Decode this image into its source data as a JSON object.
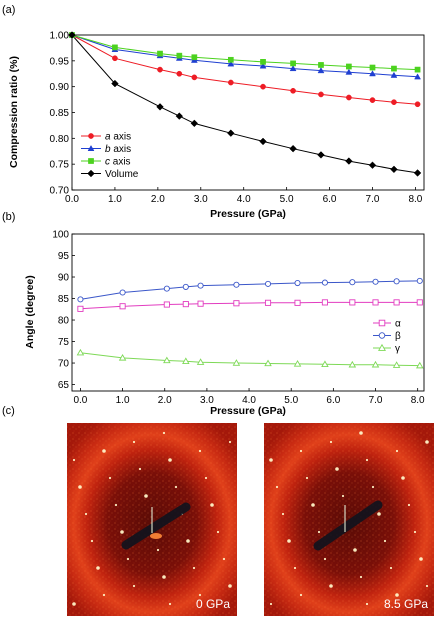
{
  "panels": {
    "a": "(a)",
    "b": "(b)",
    "c": "(c)"
  },
  "chart_data": [
    {
      "type": "line",
      "panel": "(a)",
      "xlabel": "Pressure (GPa)",
      "ylabel": "Compression ratio (%)",
      "xlim": [
        0,
        8.2
      ],
      "ylim": [
        0.7,
        1.0
      ],
      "xticks": [
        "0.0",
        "1.0",
        "2.0",
        "3.0",
        "4.0",
        "5.0",
        "6.0",
        "7.0",
        "8.0"
      ],
      "yticks": [
        "0.70",
        "0.75",
        "0.80",
        "0.85",
        "0.90",
        "0.95",
        "1.00"
      ],
      "legend_position": "bottom-left",
      "series": [
        {
          "name": "a axis",
          "name_italic": "a",
          "name_rest": " axis",
          "marker": "circle",
          "color": "#ee1c25",
          "x": [
            0,
            1,
            2.05,
            2.5,
            2.85,
            3.7,
            4.45,
            5.15,
            5.8,
            6.45,
            7.0,
            7.5,
            8.05
          ],
          "y": [
            1.0,
            0.955,
            0.933,
            0.925,
            0.918,
            0.908,
            0.9,
            0.892,
            0.885,
            0.879,
            0.874,
            0.87,
            0.866
          ]
        },
        {
          "name": "b axis",
          "name_italic": "b",
          "name_rest": " axis",
          "marker": "triangle",
          "color": "#1f3fd1",
          "x": [
            0,
            1,
            2.05,
            2.5,
            2.85,
            3.7,
            4.45,
            5.15,
            5.8,
            6.45,
            7.0,
            7.5,
            8.05
          ],
          "y": [
            1.0,
            0.972,
            0.96,
            0.955,
            0.951,
            0.944,
            0.94,
            0.935,
            0.931,
            0.928,
            0.925,
            0.922,
            0.919
          ]
        },
        {
          "name": "c axis",
          "name_italic": "c",
          "name_rest": " axis",
          "marker": "square",
          "color": "#4cd21f",
          "x": [
            0,
            1,
            2.05,
            2.5,
            2.85,
            3.7,
            4.45,
            5.15,
            5.8,
            6.45,
            7.0,
            7.5,
            8.05
          ],
          "y": [
            1.0,
            0.976,
            0.964,
            0.96,
            0.957,
            0.952,
            0.948,
            0.945,
            0.942,
            0.939,
            0.937,
            0.935,
            0.933
          ]
        },
        {
          "name": "Volume",
          "name_italic": "",
          "name_rest": "Volume",
          "marker": "diamond",
          "color": "#000000",
          "x": [
            0,
            1,
            2.05,
            2.5,
            2.85,
            3.7,
            4.45,
            5.15,
            5.8,
            6.45,
            7.0,
            7.5,
            8.05
          ],
          "y": [
            1.0,
            0.906,
            0.861,
            0.843,
            0.829,
            0.81,
            0.794,
            0.78,
            0.768,
            0.756,
            0.748,
            0.74,
            0.733
          ]
        }
      ]
    },
    {
      "type": "line",
      "panel": "(b)",
      "xlabel": "Pressure (GPa)",
      "ylabel": "Angle (degree)",
      "xlim": [
        -0.2,
        8.15
      ],
      "ylim": [
        63.5,
        100
      ],
      "xticks": [
        "0.0",
        "1.0",
        "2.0",
        "3.0",
        "4.0",
        "5.0",
        "6.0",
        "7.0",
        "8.0"
      ],
      "yticks": [
        "65",
        "70",
        "75",
        "80",
        "85",
        "90",
        "95",
        "100"
      ],
      "legend_position": "right",
      "series": [
        {
          "name": "α",
          "marker": "open-square",
          "color": "#e23dc0",
          "x": [
            0,
            1,
            2.05,
            2.5,
            2.85,
            3.7,
            4.45,
            5.15,
            5.8,
            6.45,
            7.0,
            7.5,
            8.05
          ],
          "y": [
            82.6,
            83.2,
            83.6,
            83.7,
            83.8,
            83.9,
            84.0,
            84.0,
            84.1,
            84.1,
            84.1,
            84.1,
            84.1
          ]
        },
        {
          "name": "β",
          "marker": "open-circle",
          "color": "#3b57c9",
          "x": [
            0,
            1,
            2.05,
            2.5,
            2.85,
            3.7,
            4.45,
            5.15,
            5.8,
            6.45,
            7.0,
            7.5,
            8.05
          ],
          "y": [
            84.8,
            86.4,
            87.3,
            87.7,
            88.0,
            88.2,
            88.4,
            88.6,
            88.7,
            88.8,
            88.9,
            89.0,
            89.1
          ]
        },
        {
          "name": "γ",
          "marker": "open-triangle",
          "color": "#7ed957",
          "x": [
            0,
            1,
            2.05,
            2.5,
            2.85,
            3.7,
            4.45,
            5.15,
            5.8,
            6.45,
            7.0,
            7.5,
            8.05
          ],
          "y": [
            72.4,
            71.2,
            70.6,
            70.4,
            70.2,
            70.0,
            69.9,
            69.8,
            69.7,
            69.6,
            69.6,
            69.5,
            69.4
          ]
        }
      ]
    }
  ],
  "images": [
    {
      "caption": "0 GPa"
    },
    {
      "caption": "8.5 GPa"
    }
  ]
}
